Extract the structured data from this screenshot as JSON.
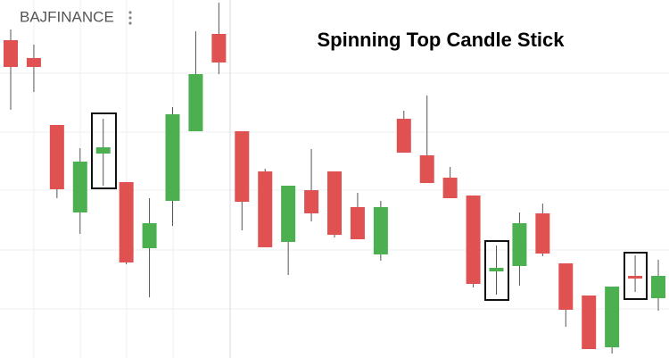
{
  "chart_data": {
    "type": "candlestick",
    "symbol": "BAJFINANCE",
    "title": "Spinning Top Candle Stick",
    "up_color": "#4caf50",
    "down_color": "#e05252",
    "ylim": [
      0,
      400
    ],
    "series": [
      {
        "open": [
          355,
          335,
          260,
          162,
          228,
          196,
          122,
          175,
          253,
          362,
          253,
          208,
          129,
          187,
          208,
          168,
          115,
          267,
          226,
          201,
          181,
          96,
          102,
          161,
          105,
          69,
          11,
          91,
          66
        ],
        "close": [
          325,
          325,
          188,
          219,
          235,
          106,
          150,
          272,
          317,
          330,
          174,
          123,
          192,
          161,
          137,
          132,
          168,
          229,
          195,
          178,
          82,
          100,
          150,
          116,
          53,
          9,
          79,
          88,
          91
        ],
        "high": [
          367,
          350,
          260,
          234,
          267,
          196,
          178,
          280,
          365,
          397,
          253,
          211,
          192,
          233,
          208,
          184,
          175,
          276,
          293,
          213,
          181,
          125,
          162,
          172,
          105,
          69,
          79,
          114,
          109
        ],
        "low": [
          277,
          297,
          178,
          138,
          192,
          104,
          67,
          147,
          253,
          317,
          142,
          123,
          92,
          152,
          134,
          132,
          108,
          229,
          195,
          178,
          78,
          70,
          80,
          113,
          34,
          9,
          4,
          73,
          52
        ]
      }
    ]
  }
}
